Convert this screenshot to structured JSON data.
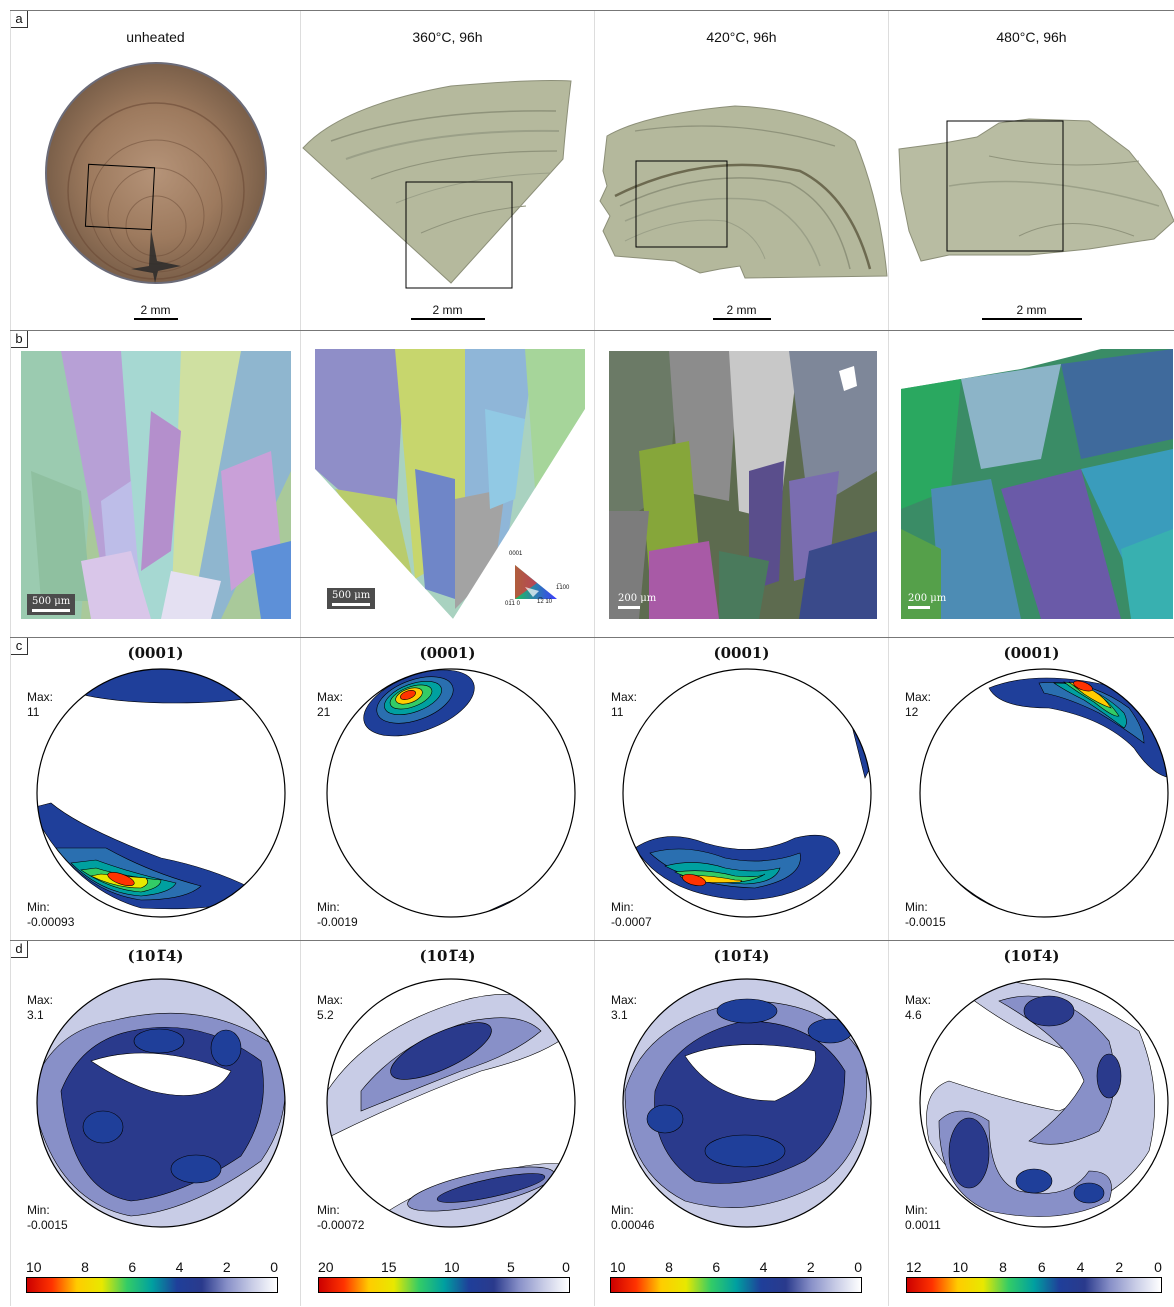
{
  "panels": {
    "a": {
      "label": "a",
      "columns": [
        {
          "title": "unheated",
          "scale": "2 mm"
        },
        {
          "title": "360°C, 96h",
          "scale": "2 mm"
        },
        {
          "title": "420°C, 96h",
          "scale": "2 mm"
        },
        {
          "title": "480°C, 96h",
          "scale": "2 mm"
        }
      ]
    },
    "b": {
      "label": "b",
      "columns": [
        {
          "scale": "500 μm"
        },
        {
          "scale": "500 μm"
        },
        {
          "scale": "200 μm"
        },
        {
          "scale": "200 μm"
        }
      ],
      "ipf_key": {
        "top": "0001",
        "right": "1̅100",
        "bottom_left": "01̅1 0",
        "bottom_right": "1̅2 10"
      }
    },
    "c": {
      "label": "c",
      "title": "(0001)",
      "columns": [
        {
          "max_label": "Max:",
          "max": "11",
          "min_label": "Min:",
          "min": "-0.00093"
        },
        {
          "max_label": "Max:",
          "max": "21",
          "min_label": "Min:",
          "min": "-0.0019"
        },
        {
          "max_label": "Max:",
          "max": "11",
          "min_label": "Min:",
          "min": "-0.0007"
        },
        {
          "max_label": "Max:",
          "max": "12",
          "min_label": "Min:",
          "min": "-0.0015"
        }
      ]
    },
    "d": {
      "label": "d",
      "title": "(101̅4)",
      "columns": [
        {
          "max_label": "Max:",
          "max": "3.1",
          "min_label": "Min:",
          "min": "-0.0015"
        },
        {
          "max_label": "Max:",
          "max": "5.2",
          "min_label": "Min:",
          "min": "-0.00072"
        },
        {
          "max_label": "Max:",
          "max": "3.1",
          "min_label": "Min:",
          "min": "0.00046"
        },
        {
          "max_label": "Max:",
          "max": "4.6",
          "min_label": "Min:",
          "min": "0.0011"
        }
      ]
    }
  },
  "colorbars": [
    {
      "ticks": [
        "10",
        "8",
        "6",
        "4",
        "2",
        "0"
      ]
    },
    {
      "ticks": [
        "20",
        "15",
        "10",
        "5",
        "0"
      ]
    },
    {
      "ticks": [
        "10",
        "8",
        "6",
        "4",
        "2",
        "0"
      ]
    },
    {
      "ticks": [
        "12",
        "10",
        "8",
        "6",
        "4",
        "2",
        "0"
      ]
    }
  ],
  "colors": {
    "colormap": [
      "#cc0000",
      "#ff3300",
      "#ffcc00",
      "#e8e800",
      "#33cc66",
      "#00a0a0",
      "#1f3f9a",
      "#2a3a8c",
      "#8890c8",
      "#c8cce6",
      "#ffffff"
    ],
    "pole_figure_line": "#000000",
    "sample_unheated": "#9b7a60",
    "sample_heated": "#b8bba0"
  }
}
